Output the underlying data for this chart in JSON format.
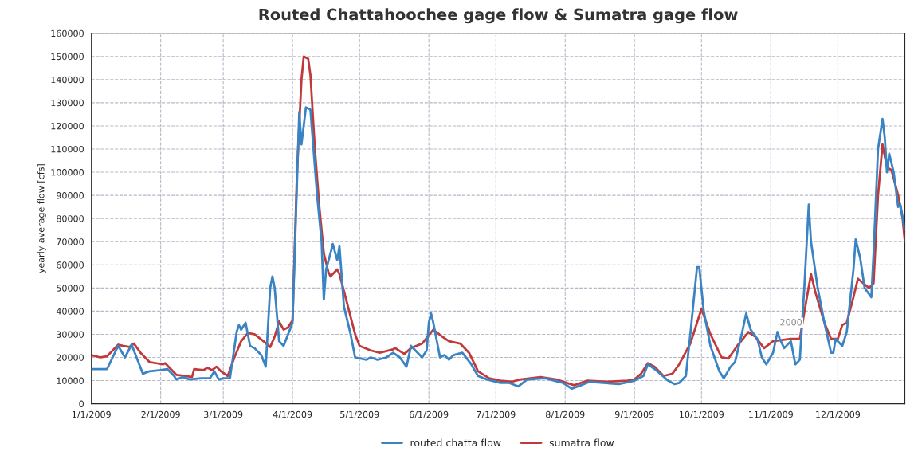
{
  "chart_data": {
    "type": "line",
    "title": "Routed Chattahoochee gage flow & Sumatra gage flow",
    "ylabel": "yearly average flow [cfs]",
    "series": [
      {
        "name": "routed chatta flow",
        "color": "#3a84c4",
        "x": [
          "2009-01-01",
          "2009-01-08",
          "2009-01-13",
          "2009-01-16",
          "2009-01-19",
          "2009-01-24",
          "2009-01-27",
          "2009-02-01",
          "2009-02-04",
          "2009-02-07",
          "2009-02-08",
          "2009-02-11",
          "2009-02-14",
          "2009-02-19",
          "2009-02-23",
          "2009-02-25",
          "2009-02-27",
          "2009-03-01",
          "2009-03-04",
          "2009-03-07",
          "2009-03-08",
          "2009-03-09",
          "2009-03-11",
          "2009-03-13",
          "2009-03-15",
          "2009-03-18",
          "2009-03-20",
          "2009-03-22",
          "2009-03-23",
          "2009-03-24",
          "2009-03-26",
          "2009-03-28",
          "2009-03-30",
          "2009-04-01",
          "2009-04-04",
          "2009-04-05",
          "2009-04-07",
          "2009-04-09",
          "2009-04-12",
          "2009-04-14",
          "2009-04-15",
          "2009-04-16",
          "2009-04-18",
          "2009-04-19",
          "2009-04-21",
          "2009-04-22",
          "2009-04-24",
          "2009-04-27",
          "2009-04-29",
          "2009-05-04",
          "2009-05-06",
          "2009-05-09",
          "2009-05-13",
          "2009-05-16",
          "2009-05-19",
          "2009-05-22",
          "2009-05-24",
          "2009-05-29",
          "2009-05-31",
          "2009-06-01",
          "2009-06-02",
          "2009-06-03",
          "2009-06-06",
          "2009-06-08",
          "2009-06-10",
          "2009-06-12",
          "2009-06-16",
          "2009-06-20",
          "2009-06-23",
          "2009-06-27",
          "2009-07-03",
          "2009-07-07",
          "2009-07-11",
          "2009-07-15",
          "2009-07-23",
          "2009-07-31",
          "2009-08-04",
          "2009-08-08",
          "2009-08-12",
          "2009-08-18",
          "2009-08-25",
          "2009-08-30",
          "2009-09-01",
          "2009-09-05",
          "2009-09-07",
          "2009-09-10",
          "2009-09-16",
          "2009-09-19",
          "2009-09-21",
          "2009-09-24",
          "2009-09-26",
          "2009-09-29",
          "2009-09-30",
          "2009-10-02",
          "2009-10-05",
          "2009-10-09",
          "2009-10-11",
          "2009-10-14",
          "2009-10-16",
          "2009-10-19",
          "2009-10-21",
          "2009-10-23",
          "2009-10-26",
          "2009-10-28",
          "2009-10-30",
          "2009-11-02",
          "2009-11-04",
          "2009-11-05",
          "2009-11-07",
          "2009-11-10",
          "2009-11-12",
          "2009-11-14",
          "2009-11-16",
          "2009-11-18",
          "2009-11-19",
          "2009-11-22",
          "2009-11-25",
          "2009-11-28",
          "2009-11-29",
          "2009-11-30",
          "2009-12-03",
          "2009-12-05",
          "2009-12-08",
          "2009-12-09",
          "2009-12-11",
          "2009-12-13",
          "2009-12-16",
          "2009-12-17",
          "2009-12-19",
          "2009-12-21",
          "2009-12-22",
          "2009-12-23",
          "2009-12-24",
          "2009-12-26",
          "2009-12-28",
          "2009-12-29",
          "2009-12-31"
        ],
        "values": [
          15000,
          15000,
          25000,
          20000,
          25500,
          13000,
          14000,
          14500,
          15000,
          12000,
          10500,
          11500,
          10500,
          11000,
          11000,
          14000,
          10500,
          11000,
          11000,
          31000,
          34000,
          32000,
          35000,
          25000,
          24000,
          21000,
          16000,
          50000,
          55000,
          50000,
          27000,
          25000,
          30000,
          35000,
          126000,
          112000,
          128000,
          127000,
          90000,
          70000,
          45000,
          58000,
          65000,
          69000,
          62000,
          68000,
          42000,
          30000,
          20000,
          19000,
          20000,
          19000,
          20000,
          22000,
          20000,
          16000,
          25000,
          20000,
          23000,
          35000,
          39000,
          35000,
          20000,
          21000,
          19000,
          21000,
          22000,
          17000,
          12000,
          10500,
          9000,
          9000,
          7500,
          10500,
          11000,
          9000,
          6500,
          8000,
          9500,
          9000,
          8500,
          9500,
          10000,
          12000,
          17000,
          15000,
          10000,
          8500,
          9000,
          12000,
          30000,
          59000,
          59000,
          40000,
          25000,
          14000,
          11000,
          16000,
          18000,
          30000,
          39000,
          32000,
          28000,
          20000,
          17000,
          22000,
          31000,
          28000,
          24000,
          27000,
          17000,
          19000,
          50000,
          86000,
          70000,
          50000,
          35000,
          22000,
          22000,
          28000,
          25000,
          31000,
          58000,
          71000,
          63000,
          50000,
          46000,
          65000,
          110000,
          123000,
          115000,
          100000,
          108000,
          100000,
          85000,
          86000,
          75000
        ]
      },
      {
        "name": "sumatra flow",
        "color": "#c0393b",
        "x": [
          "2009-01-01",
          "2009-01-05",
          "2009-01-08",
          "2009-01-13",
          "2009-01-15",
          "2009-01-18",
          "2009-01-20",
          "2009-01-23",
          "2009-01-27",
          "2009-01-30",
          "2009-02-02",
          "2009-02-03",
          "2009-02-08",
          "2009-02-12",
          "2009-02-15",
          "2009-02-16",
          "2009-02-20",
          "2009-02-22",
          "2009-02-24",
          "2009-02-26",
          "2009-02-28",
          "2009-03-03",
          "2009-03-06",
          "2009-03-09",
          "2009-03-12",
          "2009-03-15",
          "2009-03-19",
          "2009-03-22",
          "2009-03-24",
          "2009-03-26",
          "2009-03-28",
          "2009-03-30",
          "2009-04-01",
          "2009-04-03",
          "2009-04-05",
          "2009-04-06",
          "2009-04-08",
          "2009-04-09",
          "2009-04-11",
          "2009-04-13",
          "2009-04-15",
          "2009-04-17",
          "2009-04-18",
          "2009-04-21",
          "2009-04-22",
          "2009-04-25",
          "2009-04-29",
          "2009-05-01",
          "2009-05-06",
          "2009-05-10",
          "2009-05-16",
          "2009-05-17",
          "2009-05-21",
          "2009-05-24",
          "2009-05-29",
          "2009-06-03",
          "2009-06-07",
          "2009-06-10",
          "2009-06-15",
          "2009-06-19",
          "2009-06-23",
          "2009-06-28",
          "2009-07-03",
          "2009-07-08",
          "2009-07-12",
          "2009-07-21",
          "2009-07-28",
          "2009-08-05",
          "2009-08-11",
          "2009-08-19",
          "2009-08-29",
          "2009-09-01",
          "2009-09-04",
          "2009-09-07",
          "2009-09-10",
          "2009-09-14",
          "2009-09-18",
          "2009-09-21",
          "2009-09-26",
          "2009-10-01",
          "2009-10-05",
          "2009-10-10",
          "2009-10-13",
          "2009-10-17",
          "2009-10-22",
          "2009-10-25",
          "2009-10-29",
          "2009-11-02",
          "2009-11-10",
          "2009-11-14",
          "2009-11-17",
          "2009-11-19",
          "2009-11-21",
          "2009-11-25",
          "2009-11-28",
          "2009-12-01",
          "2009-12-03",
          "2009-12-05",
          "2009-12-08",
          "2009-12-10",
          "2009-12-15",
          "2009-12-17",
          "2009-12-19",
          "2009-12-21",
          "2009-12-23",
          "2009-12-25",
          "2009-12-28",
          "2009-12-30",
          "2009-12-31"
        ],
        "values": [
          21000,
          20000,
          20500,
          25500,
          25000,
          24500,
          26000,
          22000,
          18000,
          17500,
          17000,
          17500,
          12500,
          12000,
          11500,
          15000,
          14500,
          15500,
          14500,
          16000,
          14000,
          12000,
          20000,
          27000,
          30500,
          30000,
          27000,
          24500,
          29000,
          35500,
          32000,
          33000,
          36000,
          100000,
          140000,
          150000,
          149000,
          142000,
          110000,
          85000,
          65000,
          57000,
          55000,
          58000,
          56000,
          45000,
          30000,
          25000,
          23000,
          22000,
          23500,
          24000,
          21500,
          24000,
          26000,
          32000,
          29000,
          27000,
          26000,
          22000,
          14000,
          11000,
          10000,
          9500,
          10500,
          11500,
          10500,
          8000,
          10000,
          9500,
          10000,
          10500,
          13000,
          17500,
          16000,
          12000,
          13000,
          17000,
          26000,
          41000,
          30000,
          20000,
          19500,
          25000,
          31000,
          29000,
          24000,
          27000,
          28000,
          28000,
          45000,
          56000,
          48000,
          35000,
          28000,
          28000,
          34000,
          35000,
          46000,
          54000,
          50000,
          52000,
          90000,
          112000,
          102000,
          101000,
          90000,
          80000,
          70000
        ]
      }
    ],
    "annotations": [
      {
        "text": "2000",
        "x": "2009-11-05",
        "y": 30000
      }
    ],
    "xlim": [
      "2009-01-01",
      "2009-12-31"
    ],
    "xticks": [
      {
        "value": "2009-01-01",
        "label": "1/1/2009"
      },
      {
        "value": "2009-02-01",
        "label": "2/1/2009"
      },
      {
        "value": "2009-03-01",
        "label": "3/1/2009"
      },
      {
        "value": "2009-04-01",
        "label": "4/1/2009"
      },
      {
        "value": "2009-05-01",
        "label": "5/1/2009"
      },
      {
        "value": "2009-06-01",
        "label": "6/1/2009"
      },
      {
        "value": "2009-07-01",
        "label": "7/1/2009"
      },
      {
        "value": "2009-08-01",
        "label": "8/1/2009"
      },
      {
        "value": "2009-09-01",
        "label": "9/1/2009"
      },
      {
        "value": "2009-10-01",
        "label": "10/1/2009"
      },
      {
        "value": "2009-11-01",
        "label": "11/1/2009"
      },
      {
        "value": "2009-12-01",
        "label": "12/1/2009"
      }
    ],
    "ylim": [
      0,
      160000
    ],
    "yticks": [
      0,
      10000,
      20000,
      30000,
      40000,
      50000,
      60000,
      70000,
      80000,
      90000,
      100000,
      110000,
      120000,
      130000,
      140000,
      150000,
      160000
    ],
    "grid": true,
    "legend": "bottom",
    "marker": "none",
    "line_style": "solid"
  }
}
